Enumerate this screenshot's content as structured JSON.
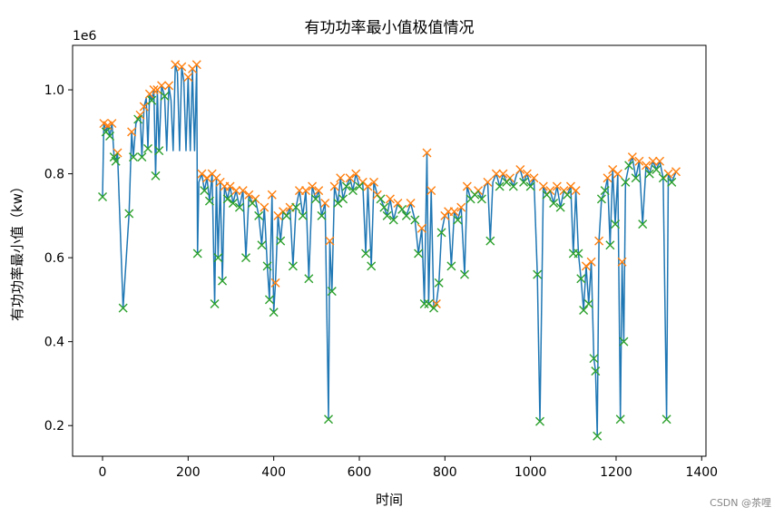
{
  "chart_data": {
    "type": "line",
    "title": "有功功率最小值极值情况",
    "xlabel": "时间",
    "ylabel": "有功功率最小值（kw）",
    "y_offset_label": "1e6",
    "watermark": "CSDN @茶哩",
    "xlim": [
      -70,
      1410
    ],
    "ylim": [
      0.127,
      1.106
    ],
    "xticks": [
      0,
      200,
      400,
      600,
      800,
      1000,
      1200,
      1400
    ],
    "yticks": [
      0.2,
      0.4,
      0.6,
      0.8,
      {
        "value": 1,
        "label": "1.0"
      }
    ],
    "series": [
      {
        "kind": "line",
        "color": "#1f77b4",
        "x": [
          0,
          3,
          8,
          12,
          17,
          22,
          27,
          31,
          35,
          48,
          62,
          68,
          72,
          78,
          83,
          88,
          92,
          97,
          102,
          106,
          110,
          115,
          120,
          124,
          128,
          132,
          138,
          145,
          150,
          155,
          160,
          165,
          170,
          175,
          180,
          185,
          190,
          195,
          200,
          205,
          210,
          215,
          220,
          222,
          225,
          232,
          238,
          244,
          250,
          256,
          262,
          266,
          270,
          275,
          280,
          285,
          292,
          298,
          305,
          312,
          320,
          328,
          335,
          342,
          350,
          357,
          365,
          372,
          378,
          385,
          390,
          396,
          400,
          404,
          410,
          416,
          422,
          430,
          438,
          445,
          452,
          460,
          468,
          475,
          482,
          490,
          498,
          505,
          512,
          520,
          528,
          531,
          536,
          542,
          550,
          556,
          562,
          570,
          578,
          585,
          592,
          600,
          608,
          615,
          620,
          628,
          634,
          642,
          650,
          658,
          665,
          672,
          680,
          690,
          700,
          710,
          720,
          730,
          738,
          746,
          752,
          758,
          762,
          768,
          774,
          780,
          786,
          792,
          800,
          808,
          815,
          822,
          830,
          838,
          846,
          852,
          860,
          870,
          878,
          886,
          893,
          900,
          906,
          912,
          920,
          928,
          936,
          944,
          952,
          960,
          968,
          976,
          984,
          992,
          1000,
          1008,
          1016,
          1022,
          1030,
          1038,
          1046,
          1054,
          1062,
          1070,
          1078,
          1086,
          1094,
          1100,
          1106,
          1112,
          1118,
          1124,
          1130,
          1136,
          1142,
          1148,
          1152,
          1156,
          1160,
          1166,
          1174,
          1180,
          1186,
          1192,
          1198,
          1204,
          1210,
          1214,
          1218,
          1222,
          1230,
          1238,
          1246,
          1254,
          1262,
          1270,
          1278,
          1286,
          1294,
          1302,
          1310,
          1318,
          1322,
          1330,
          1340
        ],
        "y": [
          0.745,
          0.92,
          0.9,
          0.915,
          0.89,
          0.92,
          0.84,
          0.83,
          0.85,
          0.48,
          0.705,
          0.9,
          0.84,
          0.92,
          0.93,
          0.94,
          0.84,
          0.96,
          0.98,
          0.86,
          0.99,
          0.975,
          1.0,
          0.795,
          1.0,
          0.855,
          1.01,
          0.985,
          0.855,
          1.01,
          0.975,
          0.855,
          1.06,
          1.04,
          0.855,
          1.055,
          1.02,
          0.855,
          1.03,
          0.855,
          1.05,
          0.855,
          1.06,
          0.61,
          0.78,
          0.8,
          0.76,
          0.79,
          0.735,
          0.8,
          0.49,
          0.79,
          0.6,
          0.78,
          0.545,
          0.77,
          0.74,
          0.77,
          0.73,
          0.76,
          0.72,
          0.76,
          0.6,
          0.75,
          0.73,
          0.74,
          0.7,
          0.63,
          0.72,
          0.58,
          0.5,
          0.75,
          0.47,
          0.54,
          0.7,
          0.64,
          0.71,
          0.7,
          0.72,
          0.58,
          0.72,
          0.76,
          0.7,
          0.76,
          0.55,
          0.77,
          0.74,
          0.76,
          0.7,
          0.73,
          0.215,
          0.64,
          0.52,
          0.77,
          0.73,
          0.79,
          0.74,
          0.77,
          0.79,
          0.76,
          0.8,
          0.77,
          0.78,
          0.61,
          0.77,
          0.58,
          0.78,
          0.75,
          0.74,
          0.72,
          0.7,
          0.74,
          0.69,
          0.73,
          0.715,
          0.7,
          0.73,
          0.69,
          0.61,
          0.67,
          0.49,
          0.85,
          0.49,
          0.76,
          0.48,
          0.49,
          0.54,
          0.66,
          0.7,
          0.71,
          0.58,
          0.71,
          0.69,
          0.72,
          0.56,
          0.77,
          0.74,
          0.75,
          0.76,
          0.74,
          0.77,
          0.78,
          0.64,
          0.78,
          0.8,
          0.77,
          0.8,
          0.78,
          0.79,
          0.77,
          0.8,
          0.81,
          0.78,
          0.8,
          0.77,
          0.79,
          0.56,
          0.21,
          0.77,
          0.75,
          0.76,
          0.73,
          0.77,
          0.72,
          0.76,
          0.75,
          0.77,
          0.61,
          0.76,
          0.61,
          0.55,
          0.475,
          0.58,
          0.49,
          0.59,
          0.36,
          0.33,
          0.175,
          0.64,
          0.74,
          0.76,
          0.79,
          0.63,
          0.81,
          0.68,
          0.8,
          0.215,
          0.59,
          0.4,
          0.78,
          0.82,
          0.84,
          0.79,
          0.83,
          0.68,
          0.82,
          0.8,
          0.83,
          0.81,
          0.83,
          0.79,
          0.215,
          0.8,
          0.78,
          0.805
        ]
      },
      {
        "kind": "scatter",
        "color": "#ff7f0e",
        "x": [
          3,
          12,
          22,
          35,
          68,
          88,
          97,
          110,
          120,
          128,
          138,
          155,
          170,
          185,
          200,
          210,
          220,
          232,
          244,
          256,
          266,
          275,
          285,
          298,
          312,
          328,
          342,
          357,
          378,
          396,
          404,
          410,
          422,
          438,
          460,
          475,
          490,
          505,
          520,
          531,
          542,
          556,
          578,
          592,
          608,
          620,
          634,
          642,
          672,
          690,
          720,
          746,
          758,
          768,
          780,
          800,
          808,
          822,
          838,
          852,
          878,
          900,
          920,
          936,
          952,
          976,
          992,
          1008,
          1030,
          1046,
          1062,
          1078,
          1094,
          1106,
          1130,
          1142,
          1160,
          1180,
          1192,
          1204,
          1214,
          1238,
          1254,
          1270,
          1286,
          1302,
          1322,
          1340
        ],
        "y": [
          0.92,
          0.915,
          0.92,
          0.85,
          0.9,
          0.94,
          0.96,
          0.99,
          1.0,
          1.0,
          1.01,
          1.01,
          1.06,
          1.055,
          1.03,
          1.05,
          1.06,
          0.8,
          0.79,
          0.8,
          0.79,
          0.78,
          0.77,
          0.77,
          0.76,
          0.76,
          0.75,
          0.74,
          0.72,
          0.75,
          0.54,
          0.7,
          0.71,
          0.72,
          0.76,
          0.76,
          0.77,
          0.76,
          0.73,
          0.64,
          0.77,
          0.79,
          0.79,
          0.8,
          0.78,
          0.77,
          0.78,
          0.75,
          0.74,
          0.73,
          0.73,
          0.67,
          0.85,
          0.76,
          0.49,
          0.7,
          0.71,
          0.71,
          0.72,
          0.77,
          0.76,
          0.78,
          0.8,
          0.8,
          0.79,
          0.81,
          0.8,
          0.79,
          0.77,
          0.76,
          0.77,
          0.76,
          0.77,
          0.76,
          0.58,
          0.59,
          0.64,
          0.79,
          0.81,
          0.8,
          0.59,
          0.84,
          0.83,
          0.82,
          0.83,
          0.83,
          0.8,
          0.805
        ]
      },
      {
        "kind": "scatter",
        "color": "#2ca02c",
        "x": [
          0,
          8,
          17,
          27,
          31,
          48,
          62,
          72,
          83,
          92,
          106,
          115,
          124,
          132,
          145,
          222,
          238,
          250,
          262,
          270,
          280,
          292,
          305,
          320,
          335,
          350,
          365,
          372,
          385,
          390,
          400,
          416,
          430,
          445,
          452,
          468,
          482,
          498,
          512,
          528,
          536,
          550,
          562,
          570,
          585,
          600,
          615,
          628,
          650,
          658,
          665,
          680,
          700,
          710,
          730,
          738,
          752,
          762,
          774,
          786,
          792,
          815,
          830,
          846,
          860,
          870,
          886,
          906,
          928,
          944,
          960,
          984,
          1000,
          1016,
          1022,
          1038,
          1054,
          1070,
          1086,
          1100,
          1112,
          1118,
          1124,
          1136,
          1148,
          1152,
          1156,
          1166,
          1174,
          1186,
          1198,
          1210,
          1218,
          1222,
          1230,
          1246,
          1262,
          1278,
          1294,
          1310,
          1318,
          1330
        ],
        "y": [
          0.745,
          0.9,
          0.89,
          0.84,
          0.83,
          0.48,
          0.705,
          0.84,
          0.93,
          0.84,
          0.86,
          0.975,
          0.795,
          0.855,
          0.985,
          0.61,
          0.76,
          0.735,
          0.49,
          0.6,
          0.545,
          0.74,
          0.73,
          0.72,
          0.6,
          0.73,
          0.7,
          0.63,
          0.58,
          0.5,
          0.47,
          0.64,
          0.7,
          0.58,
          0.72,
          0.7,
          0.55,
          0.74,
          0.7,
          0.215,
          0.52,
          0.73,
          0.74,
          0.77,
          0.76,
          0.77,
          0.61,
          0.58,
          0.74,
          0.72,
          0.7,
          0.69,
          0.715,
          0.7,
          0.69,
          0.61,
          0.49,
          0.49,
          0.48,
          0.54,
          0.66,
          0.58,
          0.69,
          0.56,
          0.74,
          0.75,
          0.74,
          0.64,
          0.77,
          0.78,
          0.77,
          0.78,
          0.77,
          0.56,
          0.21,
          0.75,
          0.73,
          0.72,
          0.75,
          0.61,
          0.61,
          0.55,
          0.475,
          0.49,
          0.36,
          0.33,
          0.175,
          0.74,
          0.76,
          0.63,
          0.68,
          0.215,
          0.4,
          0.78,
          0.82,
          0.79,
          0.68,
          0.8,
          0.81,
          0.79,
          0.215,
          0.78
        ]
      }
    ]
  }
}
